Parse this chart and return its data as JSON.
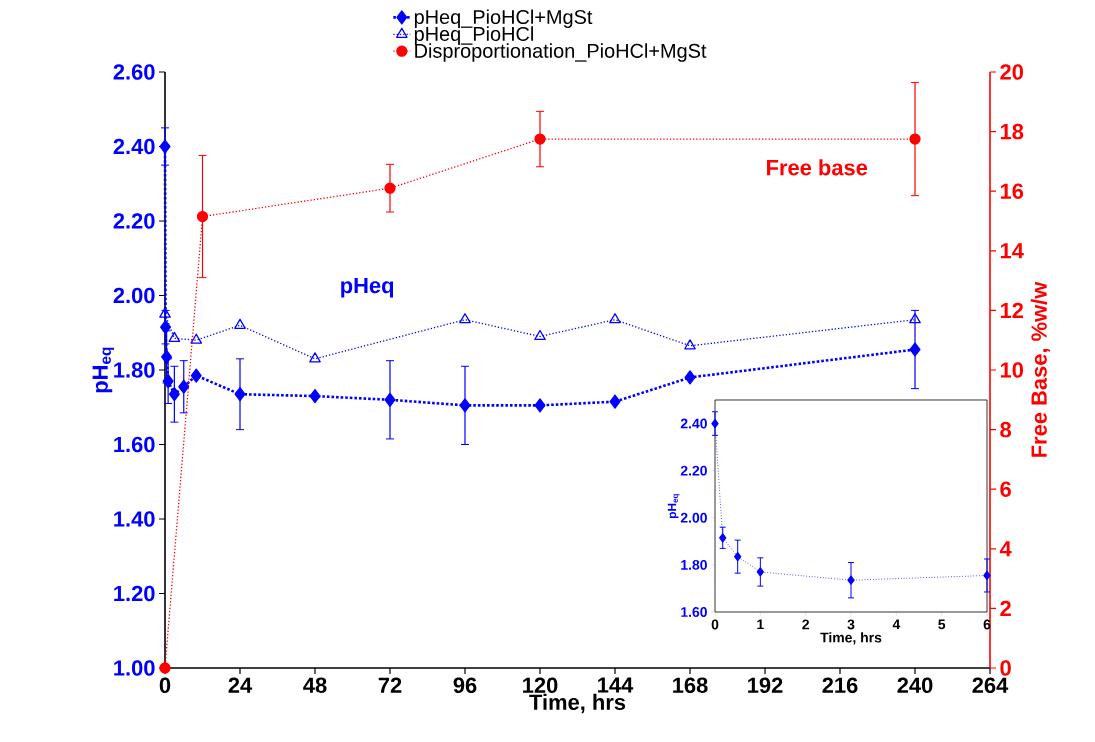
{
  "chart_data": [
    {
      "type": "line",
      "xlabel": "Time,  hrs",
      "ylabel": "pH$_{eq}$",
      "y2label": "Free Base, %w/w",
      "annotations": [
        "pHeq",
        "Free base"
      ],
      "xlim": [
        0,
        264
      ],
      "ylim": [
        1,
        2.6
      ],
      "y2lim": [
        0,
        20
      ],
      "xticks": [
        0,
        24,
        48,
        72,
        96,
        120,
        144,
        168,
        192,
        216,
        240,
        264
      ],
      "yticks": [
        {
          "value": 1,
          "label": "1.00"
        },
        {
          "value": 1.2,
          "label": "1.20"
        },
        {
          "value": 1.4,
          "label": "1.40"
        },
        {
          "value": 1.6,
          "label": "1.60"
        },
        {
          "value": 1.8,
          "label": "1.80"
        },
        {
          "value": 2,
          "label": "2.00"
        },
        {
          "value": 2.2,
          "label": "2.20"
        },
        {
          "value": 2.4,
          "label": "2.40"
        },
        {
          "value": 2.6,
          "label": "2.60"
        }
      ],
      "y2ticks": [
        0,
        2,
        4,
        6,
        8,
        10,
        12,
        14,
        16,
        18,
        20
      ],
      "legend": "top",
      "line_style": "dotted",
      "series": [
        {
          "name": "pHeq_PioHCl+MgSt",
          "color": "#0000ff",
          "marker": "diamond",
          "x": [
            0,
            0.17,
            0.5,
            1,
            3,
            6,
            10,
            24,
            48,
            72,
            96,
            120,
            144,
            168,
            240
          ],
          "values": [
            2.4,
            1.915,
            1.835,
            1.77,
            1.735,
            1.755,
            1.785,
            1.735,
            1.73,
            1.72,
            1.705,
            1.705,
            1.715,
            1.78,
            1.855
          ],
          "errors": [
            0.05,
            0.045,
            0.07,
            0.06,
            0.075,
            0.07,
            null,
            0.095,
            null,
            0.105,
            0.105,
            null,
            null,
            null,
            0.105
          ]
        },
        {
          "name": "pHeq_PioHCl",
          "color": "#0000ff",
          "marker": "triangle",
          "x": [
            0,
            3,
            10,
            24,
            48,
            96,
            120,
            144,
            168,
            240
          ],
          "values": [
            1.95,
            1.885,
            1.88,
            1.92,
            1.83,
            1.935,
            1.89,
            1.935,
            1.865,
            1.935
          ]
        },
        {
          "name": "Disproportionation_PioHCl+MgSt",
          "color": "#ff0000",
          "marker": "circle",
          "axis": "y2",
          "x": [
            0,
            12,
            72,
            120,
            240
          ],
          "values": [
            0,
            15.15,
            16.1,
            17.75,
            17.75
          ],
          "errors": [
            null,
            2.05,
            0.8,
            0.93,
            1.9
          ]
        }
      ]
    },
    {
      "type": "line",
      "xlabel": "Time,  hrs",
      "ylabel": "pH$_{eq}$",
      "xlim": [
        0,
        6
      ],
      "ylim": [
        1.6,
        2.5
      ],
      "xticks": [
        0,
        1,
        2,
        3,
        4,
        5,
        6
      ],
      "yticks": [
        {
          "value": 1.6,
          "label": "1.60"
        },
        {
          "value": 1.8,
          "label": "1.80"
        },
        {
          "value": 2,
          "label": "2.00"
        },
        {
          "value": 2.2,
          "label": "2.20"
        },
        {
          "value": 2.4,
          "label": "2.40"
        }
      ],
      "marker": "diamond",
      "line_style": "dotted",
      "series": [
        {
          "color": "#0000ff",
          "x": [
            0,
            0.17,
            0.5,
            1,
            3,
            6
          ],
          "values": [
            2.4,
            1.915,
            1.835,
            1.77,
            1.735,
            1.755
          ],
          "errors": [
            0.05,
            0.045,
            0.07,
            0.06,
            0.075,
            0.07
          ]
        }
      ]
    }
  ]
}
